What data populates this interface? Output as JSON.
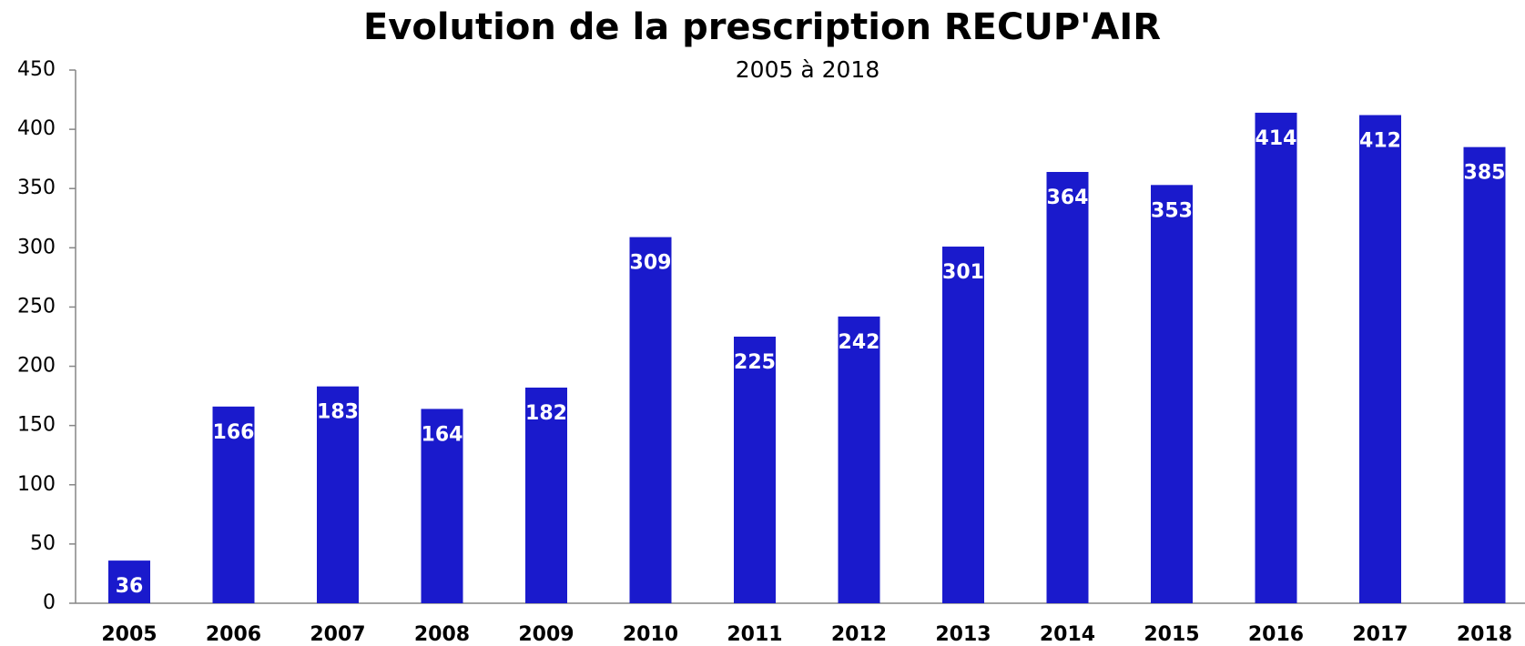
{
  "chart_data": {
    "type": "bar",
    "title": "Evolution de la prescription RECUP'AIR",
    "subtitle": "2005 à 2018",
    "categories": [
      "2005",
      "2006",
      "2007",
      "2008",
      "2009",
      "2010",
      "2011",
      "2012",
      "2013",
      "2014",
      "2015",
      "2016",
      "2017",
      "2018"
    ],
    "values": [
      36,
      166,
      183,
      164,
      182,
      309,
      225,
      242,
      301,
      364,
      353,
      414,
      412,
      385
    ],
    "color": "#1a1acc",
    "ylim": [
      0,
      450
    ],
    "yticks": [
      0,
      50,
      100,
      150,
      200,
      250,
      300,
      350,
      400,
      450
    ],
    "grid": false
  }
}
